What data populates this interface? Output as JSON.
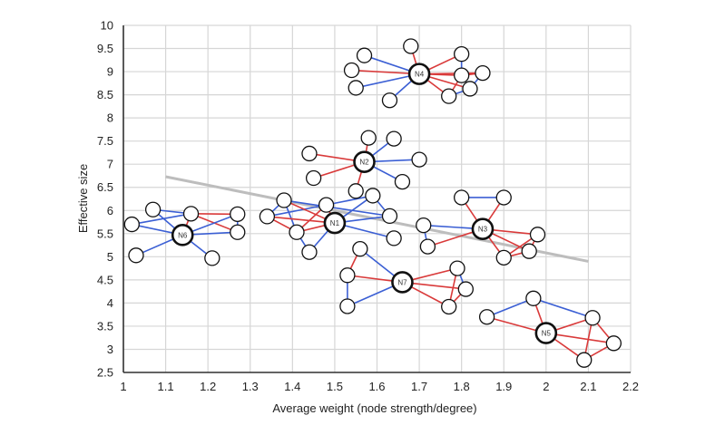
{
  "chart_data": {
    "type": "scatter",
    "title": "",
    "xlabel": "Average weight (node strength/degree)",
    "ylabel": "Effective size",
    "xlim": [
      1,
      2.2
    ],
    "ylim": [
      2.5,
      10
    ],
    "grid": true,
    "x_ticks": [
      "1",
      "1.1",
      "1.2",
      "1.3",
      "1.4",
      "1.5",
      "1.6",
      "1.7",
      "1.8",
      "1.9",
      "2",
      "2.1",
      "2.2"
    ],
    "y_ticks": [
      "2.5",
      "3",
      "3.5",
      "4",
      "4.5",
      "5",
      "5.5",
      "6",
      "6.5",
      "7",
      "7.5",
      "8",
      "8.5",
      "9",
      "9.5",
      "10"
    ],
    "colors": {
      "edge_strong": "#d93a3a",
      "edge_weak": "#3b5fd4",
      "trend": "#bdbdbd",
      "grid": "#d6d6d6",
      "axis": "#333333"
    },
    "trend_line": {
      "x": [
        1.1,
        2.1
      ],
      "y": [
        6.73,
        4.9
      ]
    },
    "points": [
      {
        "label": "N1",
        "x": 1.5,
        "y": 5.73
      },
      {
        "label": "N2",
        "x": 1.57,
        "y": 7.05
      },
      {
        "label": "N3",
        "x": 1.85,
        "y": 5.6
      },
      {
        "label": "N4",
        "x": 1.7,
        "y": 8.95
      },
      {
        "label": "N5",
        "x": 2.0,
        "y": 3.35
      },
      {
        "label": "N6",
        "x": 1.14,
        "y": 5.47
      },
      {
        "label": "N7",
        "x": 1.66,
        "y": 4.45
      }
    ],
    "networks": [
      {
        "ego": "N4",
        "alters": [
          [
            1.68,
            9.55
          ],
          [
            1.57,
            9.35
          ],
          [
            1.54,
            9.03
          ],
          [
            1.55,
            8.65
          ],
          [
            1.63,
            8.38
          ],
          [
            1.8,
            9.38
          ],
          [
            1.8,
            8.92
          ],
          [
            1.85,
            8.97
          ],
          [
            1.77,
            8.47
          ],
          [
            1.82,
            8.63
          ]
        ],
        "edges": [
          [
            0,
            "r"
          ],
          [
            1,
            "b"
          ],
          [
            2,
            "r"
          ],
          [
            3,
            "b"
          ],
          [
            4,
            "b"
          ],
          [
            5,
            "r"
          ],
          [
            6,
            "r"
          ],
          [
            7,
            "r"
          ],
          [
            8,
            "r"
          ],
          [
            9,
            "r"
          ]
        ],
        "alter_edges": [
          [
            5,
            6,
            "b"
          ],
          [
            6,
            7,
            "r"
          ],
          [
            7,
            9,
            "b"
          ],
          [
            8,
            9,
            "b"
          ],
          [
            6,
            8,
            "r"
          ]
        ]
      },
      {
        "ego": "N2",
        "alters": [
          [
            1.58,
            7.57
          ],
          [
            1.44,
            7.23
          ],
          [
            1.45,
            6.7
          ],
          [
            1.64,
            7.55
          ],
          [
            1.7,
            7.1
          ],
          [
            1.66,
            6.62
          ],
          [
            1.55,
            6.42
          ]
        ],
        "edges": [
          [
            0,
            "r"
          ],
          [
            1,
            "r"
          ],
          [
            2,
            "r"
          ],
          [
            3,
            "b"
          ],
          [
            4,
            "b"
          ],
          [
            5,
            "b"
          ],
          [
            6,
            "r"
          ]
        ],
        "alter_edges": []
      },
      {
        "ego": "N1",
        "alters": [
          [
            1.38,
            6.22
          ],
          [
            1.34,
            5.87
          ],
          [
            1.41,
            5.53
          ],
          [
            1.44,
            5.1
          ],
          [
            1.48,
            6.12
          ],
          [
            1.59,
            6.32
          ],
          [
            1.63,
            5.88
          ],
          [
            1.64,
            5.4
          ]
        ],
        "edges": [
          [
            0,
            "r"
          ],
          [
            1,
            "r"
          ],
          [
            2,
            "r"
          ],
          [
            3,
            "b"
          ],
          [
            4,
            "r"
          ],
          [
            5,
            "b"
          ],
          [
            6,
            "b"
          ],
          [
            7,
            "b"
          ]
        ],
        "alter_edges": [
          [
            0,
            1,
            "b"
          ],
          [
            1,
            2,
            "r"
          ],
          [
            0,
            2,
            "b"
          ],
          [
            2,
            3,
            "b"
          ],
          [
            0,
            6,
            "b"
          ],
          [
            4,
            5,
            "b"
          ],
          [
            5,
            6,
            "b"
          ],
          [
            1,
            4,
            "b"
          ],
          [
            2,
            4,
            "r"
          ]
        ]
      },
      {
        "ego": "N3",
        "alters": [
          [
            1.8,
            6.28
          ],
          [
            1.9,
            6.28
          ],
          [
            1.71,
            5.68
          ],
          [
            1.72,
            5.22
          ],
          [
            1.98,
            5.48
          ],
          [
            1.96,
            5.12
          ],
          [
            1.9,
            4.98
          ]
        ],
        "edges": [
          [
            0,
            "r"
          ],
          [
            1,
            "r"
          ],
          [
            2,
            "b"
          ],
          [
            3,
            "r"
          ],
          [
            4,
            "r"
          ],
          [
            5,
            "r"
          ],
          [
            6,
            "r"
          ]
        ],
        "alter_edges": [
          [
            0,
            1,
            "b"
          ],
          [
            2,
            3,
            "b"
          ],
          [
            4,
            5,
            "r"
          ],
          [
            5,
            6,
            "r"
          ],
          [
            4,
            6,
            "r"
          ]
        ]
      },
      {
        "ego": "N6",
        "alters": [
          [
            1.07,
            6.02
          ],
          [
            1.02,
            5.7
          ],
          [
            1.03,
            5.03
          ],
          [
            1.16,
            5.93
          ],
          [
            1.27,
            5.92
          ],
          [
            1.27,
            5.53
          ],
          [
            1.21,
            4.97
          ]
        ],
        "edges": [
          [
            0,
            "b"
          ],
          [
            1,
            "b"
          ],
          [
            2,
            "b"
          ],
          [
            3,
            "r"
          ],
          [
            4,
            "b"
          ],
          [
            5,
            "b"
          ],
          [
            6,
            "b"
          ]
        ],
        "alter_edges": [
          [
            0,
            3,
            "b"
          ],
          [
            1,
            3,
            "b"
          ],
          [
            3,
            4,
            "r"
          ],
          [
            3,
            5,
            "r"
          ],
          [
            4,
            5,
            "b"
          ]
        ]
      },
      {
        "ego": "N7",
        "alters": [
          [
            1.56,
            5.17
          ],
          [
            1.53,
            4.6
          ],
          [
            1.53,
            3.93
          ],
          [
            1.79,
            4.75
          ],
          [
            1.81,
            4.3
          ],
          [
            1.77,
            3.92
          ]
        ],
        "edges": [
          [
            0,
            "b"
          ],
          [
            1,
            "r"
          ],
          [
            2,
            "b"
          ],
          [
            3,
            "r"
          ],
          [
            4,
            "r"
          ],
          [
            5,
            "r"
          ]
        ],
        "alter_edges": [
          [
            0,
            1,
            "r"
          ],
          [
            1,
            2,
            "b"
          ],
          [
            3,
            4,
            "b"
          ],
          [
            3,
            5,
            "r"
          ],
          [
            4,
            5,
            "r"
          ]
        ]
      },
      {
        "ego": "N5",
        "alters": [
          [
            1.97,
            4.1
          ],
          [
            1.86,
            3.7
          ],
          [
            2.11,
            3.68
          ],
          [
            2.16,
            3.13
          ],
          [
            2.09,
            2.77
          ]
        ],
        "edges": [
          [
            0,
            "r"
          ],
          [
            1,
            "r"
          ],
          [
            2,
            "r"
          ],
          [
            3,
            "r"
          ],
          [
            4,
            "r"
          ]
        ],
        "alter_edges": [
          [
            0,
            1,
            "b"
          ],
          [
            0,
            2,
            "b"
          ],
          [
            2,
            3,
            "r"
          ],
          [
            2,
            4,
            "r"
          ],
          [
            3,
            4,
            "r"
          ]
        ]
      }
    ]
  }
}
